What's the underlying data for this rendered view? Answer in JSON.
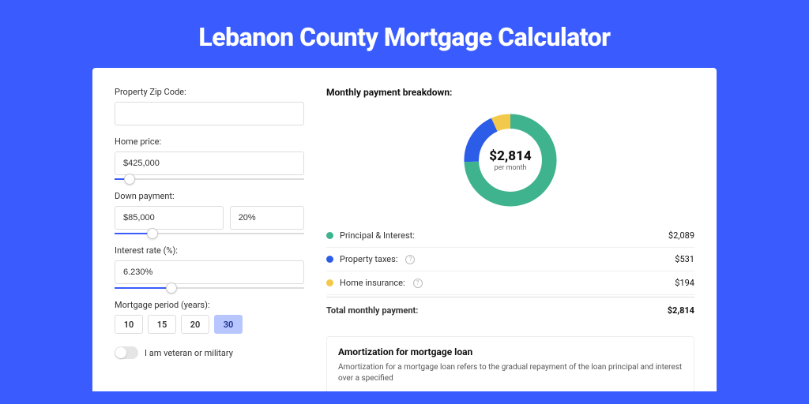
{
  "colors": {
    "page_bg": "#3a5cff",
    "card_bg": "#ffffff",
    "accent": "#3a5cff",
    "text_dark": "#111111",
    "text_mid": "#333333",
    "border": "#dddddd"
  },
  "title": "Lebanon County Mortgage Calculator",
  "form": {
    "zip": {
      "label": "Property Zip Code:",
      "value": ""
    },
    "home_price": {
      "label": "Home price:",
      "value": "$425,000",
      "slider_pct": 8
    },
    "down_payment": {
      "label": "Down payment:",
      "amount": "$85,000",
      "percent": "20%",
      "slider_pct": 20
    },
    "interest_rate": {
      "label": "Interest rate (%):",
      "value": "6.230%",
      "slider_pct": 30
    },
    "mortgage_period": {
      "label": "Mortgage period (years):",
      "options": [
        "10",
        "15",
        "20",
        "30"
      ],
      "selected": "30"
    },
    "veteran": {
      "label": "I am veteran or military",
      "checked": false
    }
  },
  "breakdown": {
    "title": "Monthly payment breakdown:",
    "donut": {
      "center_value": "$2,814",
      "center_sub": "per month",
      "ring_width": 16,
      "background_color": "#ffffff",
      "slices": [
        {
          "key": "principal_interest",
          "color": "#3fb28e",
          "value": 2089
        },
        {
          "key": "property_taxes",
          "color": "#2c5de8",
          "value": 531
        },
        {
          "key": "home_insurance",
          "color": "#f3c94b",
          "value": 194
        }
      ],
      "total": 2814
    },
    "legend": [
      {
        "dot": "#3fb28e",
        "label": "Principal & Interest:",
        "info": false,
        "value": "$2,089"
      },
      {
        "dot": "#2c5de8",
        "label": "Property taxes:",
        "info": true,
        "value": "$531"
      },
      {
        "dot": "#f3c94b",
        "label": "Home insurance:",
        "info": true,
        "value": "$194"
      }
    ],
    "total_row": {
      "label": "Total monthly payment:",
      "value": "$2,814"
    }
  },
  "amortization": {
    "title": "Amortization for mortgage loan",
    "text": "Amortization for a mortgage loan refers to the gradual repayment of the loan principal and interest over a specified"
  }
}
